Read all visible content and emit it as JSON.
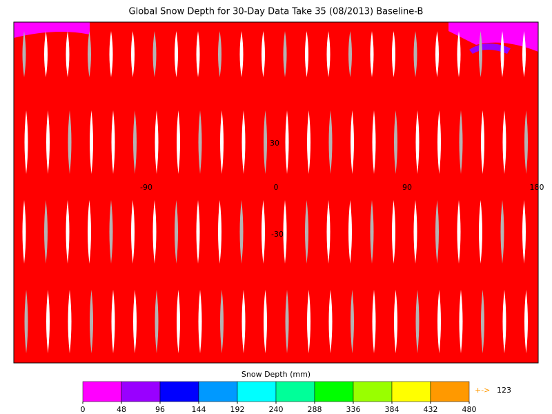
{
  "title": "Global Snow Depth for 30-Day Data Take 35 (08/2013) Baseline-B",
  "map": {
    "lon_labels": [
      "-90",
      "0",
      "90",
      "180"
    ],
    "lat_labels": [
      "30",
      "-30"
    ]
  },
  "colorbar": {
    "label": "Snow Depth (mm)",
    "ticks": [
      0,
      48,
      96,
      144,
      192,
      240,
      288,
      336,
      384,
      432,
      480
    ],
    "colors": [
      "#ff00ff",
      "#9900ff",
      "#0000ff",
      "#0099ff",
      "#00ffff",
      "#00ff99",
      "#00ff00",
      "#99ff00",
      "#ffff00",
      "#ff9900"
    ],
    "overflow_arrow": "+->",
    "overflow_value": "123"
  }
}
